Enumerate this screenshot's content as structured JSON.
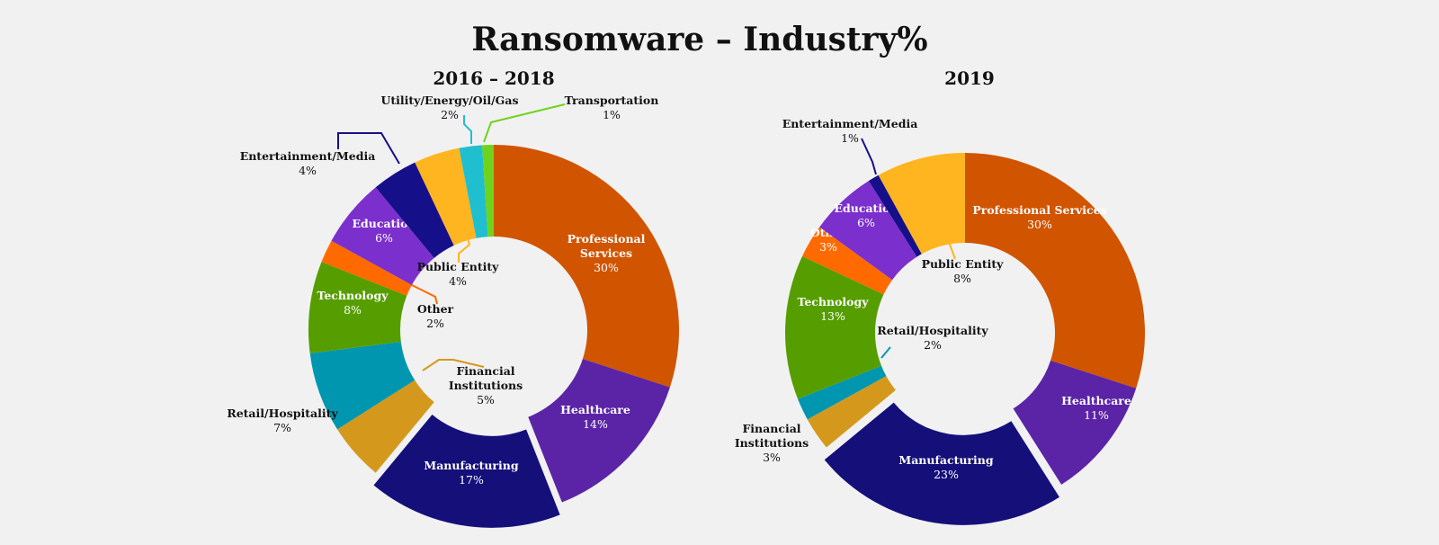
{
  "title": "Ransomware – Industry%",
  "chart_data": [
    {
      "type": "pie",
      "subtitle": "2016 – 2018",
      "unit": "%",
      "slices": [
        {
          "name": "Professional Services",
          "value": 30,
          "pct_label": "30%",
          "color": "#d15400",
          "label_lines": [
            "Professional",
            "Services"
          ],
          "label_pos": "inside",
          "text_color": "#ffffff",
          "explode": false
        },
        {
          "name": "Healthcare",
          "value": 14,
          "pct_label": "14%",
          "color": "#5b24a6",
          "label_lines": [
            "Healthcare"
          ],
          "label_pos": "inside",
          "text_color": "#ffffff",
          "explode": false
        },
        {
          "name": "Manufacturing",
          "value": 17,
          "pct_label": "17%",
          "color": "#150f7a",
          "label_lines": [
            "Manufacturing"
          ],
          "label_pos": "inside",
          "text_color": "#ffffff",
          "explode": true
        },
        {
          "name": "Financial Institutions",
          "value": 5,
          "pct_label": "5%",
          "color": "#d4991c",
          "label_lines": [
            "Financial",
            "Institutions"
          ],
          "label_pos": "center",
          "text_color": "#111111",
          "explode": false
        },
        {
          "name": "Retail/Hospitality",
          "value": 7,
          "pct_label": "7%",
          "color": "#0096b0",
          "label_lines": [
            "Retail/Hospitality"
          ],
          "label_pos": "outside-left",
          "text_color": "#111111",
          "explode": false
        },
        {
          "name": "Technology",
          "value": 8,
          "pct_label": "8%",
          "color": "#569e00",
          "label_lines": [
            "Technology"
          ],
          "label_pos": "inside",
          "text_color": "#ffffff",
          "explode": false
        },
        {
          "name": "Other",
          "value": 2,
          "pct_label": "2%",
          "color": "#ff6a00",
          "label_lines": [
            "Other"
          ],
          "label_pos": "center",
          "text_color": "#111111",
          "explode": false
        },
        {
          "name": "Education",
          "value": 6,
          "pct_label": "6%",
          "color": "#7b2fcc",
          "label_lines": [
            "Education"
          ],
          "label_pos": "inside",
          "text_color": "#ffffff",
          "explode": false
        },
        {
          "name": "Entertainment/Media",
          "value": 4,
          "pct_label": "4%",
          "color": "#160f8a",
          "label_lines": [
            "Entertainment/Media"
          ],
          "label_pos": "outside-left",
          "text_color": "#111111",
          "explode": false
        },
        {
          "name": "Public Entity",
          "value": 4,
          "pct_label": "4%",
          "color": "#ffb51f",
          "label_lines": [
            "Public Entity"
          ],
          "label_pos": "center",
          "text_color": "#111111",
          "explode": false
        },
        {
          "name": "Utility/Energy/Oil/Gas",
          "value": 2,
          "pct_label": "2%",
          "color": "#1fbfd0",
          "label_lines": [
            "Utility/Energy/Oil/Gas"
          ],
          "label_pos": "outside-top",
          "text_color": "#111111",
          "explode": false
        },
        {
          "name": "Transportation",
          "value": 1,
          "pct_label": "1%",
          "color": "#6ed31c",
          "label_lines": [
            "Transportation"
          ],
          "label_pos": "outside-top",
          "text_color": "#111111",
          "explode": false
        }
      ]
    },
    {
      "type": "pie",
      "subtitle": "2019",
      "unit": "%",
      "slices": [
        {
          "name": "Professional Services",
          "value": 30,
          "pct_label": "30%",
          "color": "#d15400",
          "label_lines": [
            "Professional Services"
          ],
          "label_pos": "inside",
          "text_color": "#ffffff",
          "explode": false
        },
        {
          "name": "Healthcare",
          "value": 11,
          "pct_label": "11%",
          "color": "#5b24a6",
          "label_lines": [
            "Healthcare"
          ],
          "label_pos": "inside",
          "text_color": "#ffffff",
          "explode": false
        },
        {
          "name": "Manufacturing",
          "value": 23,
          "pct_label": "23%",
          "color": "#150f7a",
          "label_lines": [
            "Manufacturing"
          ],
          "label_pos": "inside",
          "text_color": "#ffffff",
          "explode": true
        },
        {
          "name": "Financial Institutions",
          "value": 3,
          "pct_label": "3%",
          "color": "#d4991c",
          "label_lines": [
            "Financial",
            "Institutions"
          ],
          "label_pos": "outside-left",
          "text_color": "#111111",
          "explode": false
        },
        {
          "name": "Retail/Hospitality",
          "value": 2,
          "pct_label": "2%",
          "color": "#0096b0",
          "label_lines": [
            "Retail/Hospitality"
          ],
          "label_pos": "center",
          "text_color": "#111111",
          "explode": false
        },
        {
          "name": "Technology",
          "value": 13,
          "pct_label": "13%",
          "color": "#569e00",
          "label_lines": [
            "Technology"
          ],
          "label_pos": "inside",
          "text_color": "#ffffff",
          "explode": false
        },
        {
          "name": "Other",
          "value": 3,
          "pct_label": "3%",
          "color": "#ff6a00",
          "label_lines": [
            "Other"
          ],
          "label_pos": "inside",
          "text_color": "#ffffff",
          "explode": false
        },
        {
          "name": "Education",
          "value": 6,
          "pct_label": "6%",
          "color": "#7b2fcc",
          "label_lines": [
            "Education"
          ],
          "label_pos": "inside",
          "text_color": "#ffffff",
          "explode": false
        },
        {
          "name": "Entertainment/Media",
          "value": 1,
          "pct_label": "1%",
          "color": "#160f8a",
          "label_lines": [
            "Entertainment/Media"
          ],
          "label_pos": "outside-top",
          "text_color": "#111111",
          "explode": false
        },
        {
          "name": "Public Entity",
          "value": 8,
          "pct_label": "8%",
          "color": "#ffb51f",
          "label_lines": [
            "Public Entity"
          ],
          "label_pos": "center",
          "text_color": "#111111",
          "explode": false
        }
      ]
    }
  ]
}
